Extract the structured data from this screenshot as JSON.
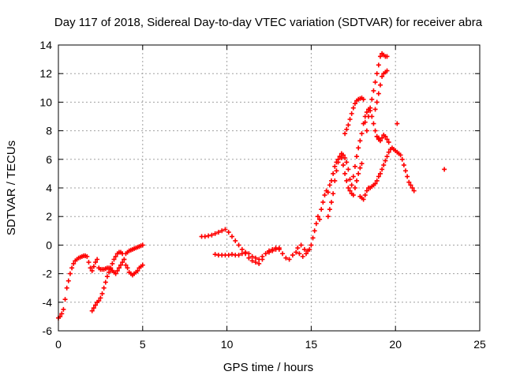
{
  "chart_data": {
    "type": "scatter",
    "title": "Day 117 of 2018, Sidereal Day-to-day VTEC variation (SDTVAR) for receiver abra",
    "xlabel": "GPS time / hours",
    "ylabel": "SDTVAR / TECUs",
    "xlim": [
      0,
      25
    ],
    "ylim": [
      -6,
      14
    ],
    "xticks": [
      "0",
      "5",
      "10",
      "15",
      "20",
      "25"
    ],
    "yticks": [
      "-6",
      "-4",
      "-2",
      "0",
      "2",
      "4",
      "6",
      "8",
      "10",
      "12",
      "14"
    ],
    "grid": true,
    "marker": "+",
    "color": "#ff0000",
    "series": [
      {
        "x": [
          0.0,
          0.1,
          0.2,
          0.3,
          0.4,
          0.5,
          0.6,
          0.7,
          0.8,
          0.9,
          1.0,
          1.1,
          1.2,
          1.3,
          1.4,
          1.5,
          1.6,
          1.7
        ],
        "y": [
          -5.1,
          -5.0,
          -4.8,
          -4.5,
          -3.8,
          -3.0,
          -2.5,
          -2.0,
          -1.6,
          -1.3,
          -1.1,
          -1.0,
          -0.9,
          -0.85,
          -0.8,
          -0.75,
          -0.75,
          -0.8
        ]
      },
      {
        "x": [
          1.8,
          1.9,
          2.0,
          2.1,
          2.2,
          2.3,
          2.4,
          2.5,
          2.6,
          2.7,
          2.8,
          2.9,
          3.0,
          3.1,
          3.2,
          3.3,
          3.4,
          3.5,
          3.6,
          3.7,
          3.8,
          3.9,
          4.0,
          4.1,
          4.2,
          4.3,
          4.4,
          4.5,
          4.6,
          4.7,
          4.8,
          4.9,
          5.0
        ],
        "y": [
          -1.2,
          -1.6,
          -1.8,
          -1.5,
          -1.2,
          -1.0,
          -1.6,
          -1.7,
          -1.7,
          -1.7,
          -1.65,
          -1.6,
          -1.6,
          -1.7,
          -1.8,
          -1.9,
          -2.0,
          -1.8,
          -1.6,
          -1.4,
          -1.2,
          -1.0,
          -0.6,
          -0.5,
          -0.4,
          -0.35,
          -0.3,
          -0.25,
          -0.2,
          -0.15,
          -0.1,
          -0.05,
          0.0
        ]
      },
      {
        "x": [
          2.0,
          2.1,
          2.2,
          2.3,
          2.4,
          2.5,
          2.6,
          2.7,
          2.8,
          2.9,
          3.0,
          3.1,
          3.2,
          3.3,
          3.4,
          3.5,
          3.6,
          3.7,
          3.8,
          3.9,
          4.0,
          4.1,
          4.2,
          4.3,
          4.4,
          4.5,
          4.6,
          4.7,
          4.8,
          4.9,
          5.0
        ],
        "y": [
          -4.6,
          -4.4,
          -4.2,
          -4.0,
          -3.9,
          -3.7,
          -3.4,
          -3.0,
          -2.6,
          -2.2,
          -1.9,
          -1.6,
          -1.3,
          -1.0,
          -0.8,
          -0.6,
          -0.5,
          -0.5,
          -0.6,
          -1.0,
          -1.4,
          -1.6,
          -1.9,
          -2.0,
          -2.1,
          -2.0,
          -1.9,
          -1.8,
          -1.6,
          -1.5,
          -1.4
        ]
      },
      {
        "x": [
          8.5,
          8.7,
          8.9,
          9.1,
          9.3,
          9.5,
          9.7,
          9.9,
          10.1,
          10.3,
          10.5,
          10.7,
          10.9,
          11.1,
          11.3,
          11.5,
          11.7,
          11.9,
          12.1,
          12.3,
          12.5,
          12.7,
          12.9,
          13.1,
          13.3,
          13.5,
          13.7,
          13.9,
          14.1,
          14.3,
          14.5,
          14.7,
          14.9
        ],
        "y": [
          0.6,
          0.6,
          0.65,
          0.7,
          0.8,
          0.9,
          1.0,
          1.1,
          0.9,
          0.6,
          0.3,
          0.0,
          -0.3,
          -0.6,
          -0.9,
          -1.1,
          -1.2,
          -1.3,
          -1.0,
          -0.6,
          -0.4,
          -0.3,
          -0.2,
          -0.3,
          -0.6,
          -0.9,
          -1.0,
          -0.7,
          -0.5,
          -0.6,
          -0.8,
          -0.6,
          -0.3
        ]
      },
      {
        "x": [
          9.3,
          9.5,
          9.7,
          9.9,
          10.1,
          10.3,
          10.5,
          10.7,
          10.9,
          11.1,
          11.3,
          11.5,
          11.7,
          11.9,
          12.1,
          12.3,
          12.5,
          12.7,
          12.9,
          13.1
        ],
        "y": [
          -0.65,
          -0.7,
          -0.7,
          -0.7,
          -0.7,
          -0.65,
          -0.7,
          -0.7,
          -0.6,
          -0.5,
          -0.6,
          -0.8,
          -0.9,
          -1.0,
          -0.8,
          -0.6,
          -0.5,
          -0.4,
          -0.3,
          -0.2
        ]
      },
      {
        "x": [
          14.2,
          14.4,
          14.6,
          14.8,
          15.0,
          15.1,
          15.2,
          15.3,
          15.4,
          15.5,
          15.6,
          15.7,
          15.8,
          15.9,
          16.0,
          16.1,
          16.2,
          16.3,
          16.4,
          16.5,
          16.6,
          16.7,
          16.8,
          16.9,
          17.0,
          17.1,
          17.2,
          17.3,
          17.4,
          17.5,
          17.6,
          17.7,
          17.8,
          17.9,
          18.0
        ],
        "y": [
          -0.2,
          0.0,
          -0.3,
          -0.4,
          0.0,
          0.5,
          1.0,
          1.5,
          2.0,
          1.8,
          2.5,
          3.0,
          3.5,
          3.8,
          3.7,
          4.2,
          4.5,
          5.0,
          5.5,
          5.8,
          6.0,
          6.2,
          6.1,
          5.6,
          5.0,
          4.5,
          4.0,
          3.8,
          3.6,
          3.5,
          4.0,
          4.5,
          5.0,
          5.4,
          5.7
        ]
      },
      {
        "x": [
          16.0,
          16.1,
          16.2,
          16.3,
          16.4,
          16.5,
          16.6,
          16.7,
          16.8,
          16.9,
          17.0,
          17.1,
          17.2,
          17.3,
          17.4,
          17.5,
          17.6,
          17.7,
          17.8,
          17.9,
          18.0,
          18.1,
          18.2,
          18.3,
          18.4,
          18.5,
          18.6,
          18.7,
          18.8,
          18.9,
          19.0
        ],
        "y": [
          2.0,
          2.5,
          3.0,
          3.6,
          4.5,
          5.2,
          5.8,
          6.2,
          6.4,
          6.3,
          6.1,
          5.8,
          5.3,
          4.6,
          4.2,
          4.8,
          5.5,
          6.2,
          6.8,
          7.3,
          7.8,
          8.5,
          9.0,
          9.3,
          9.5,
          9.4,
          9.0,
          8.5,
          8.0,
          7.6,
          7.5
        ]
      },
      {
        "x": [
          17.0,
          17.1,
          17.2,
          17.3,
          17.4,
          17.5,
          17.6,
          17.7,
          17.8,
          17.9,
          18.0,
          18.1,
          18.2,
          18.3
        ],
        "y": [
          7.8,
          8.1,
          8.4,
          8.8,
          9.2,
          9.6,
          9.9,
          10.1,
          10.2,
          10.25,
          10.3,
          10.2,
          8.6,
          8.0
        ]
      },
      {
        "x": [
          18.4,
          18.5,
          18.6,
          18.7,
          18.8,
          18.9,
          19.0,
          19.1,
          19.2,
          19.3,
          19.4,
          19.5
        ],
        "y": [
          9.0,
          9.6,
          10.2,
          10.8,
          11.4,
          12.0,
          12.6,
          13.2,
          13.4,
          13.3,
          13.2,
          13.2
        ]
      },
      {
        "x": [
          18.8,
          18.9,
          19.0,
          19.1,
          19.2,
          19.3,
          19.4,
          19.5
        ],
        "y": [
          9.5,
          10.0,
          10.6,
          11.2,
          11.8,
          12.0,
          12.1,
          12.2
        ]
      },
      {
        "x": [
          17.9,
          18.0,
          18.1,
          18.2,
          18.3,
          18.4,
          18.5,
          18.6,
          18.7,
          18.8,
          18.9,
          19.0,
          19.1,
          19.2,
          19.3,
          19.4,
          19.5,
          19.6,
          19.7,
          19.8,
          19.9,
          20.0,
          20.1,
          20.2,
          20.3,
          20.4,
          20.5,
          20.6,
          20.7,
          20.8,
          20.9,
          21.0,
          21.1
        ],
        "y": [
          3.4,
          3.3,
          3.2,
          3.5,
          3.8,
          4.0,
          4.0,
          4.1,
          4.2,
          4.3,
          4.5,
          4.8,
          5.0,
          5.3,
          5.6,
          5.9,
          6.2,
          6.5,
          6.7,
          6.8,
          6.7,
          6.6,
          6.5,
          6.4,
          6.3,
          6.0,
          5.6,
          5.2,
          4.8,
          4.4,
          4.2,
          4.0,
          3.8
        ]
      },
      {
        "x": [
          18.9,
          19.0,
          19.1,
          19.2,
          19.3,
          19.4,
          19.5,
          19.6
        ],
        "y": [
          7.6,
          7.4,
          7.3,
          7.5,
          7.7,
          7.6,
          7.4,
          7.2
        ]
      },
      {
        "x": [
          20.1
        ],
        "y": [
          8.5
        ]
      },
      {
        "x": [
          22.9
        ],
        "y": [
          5.3
        ]
      }
    ]
  }
}
